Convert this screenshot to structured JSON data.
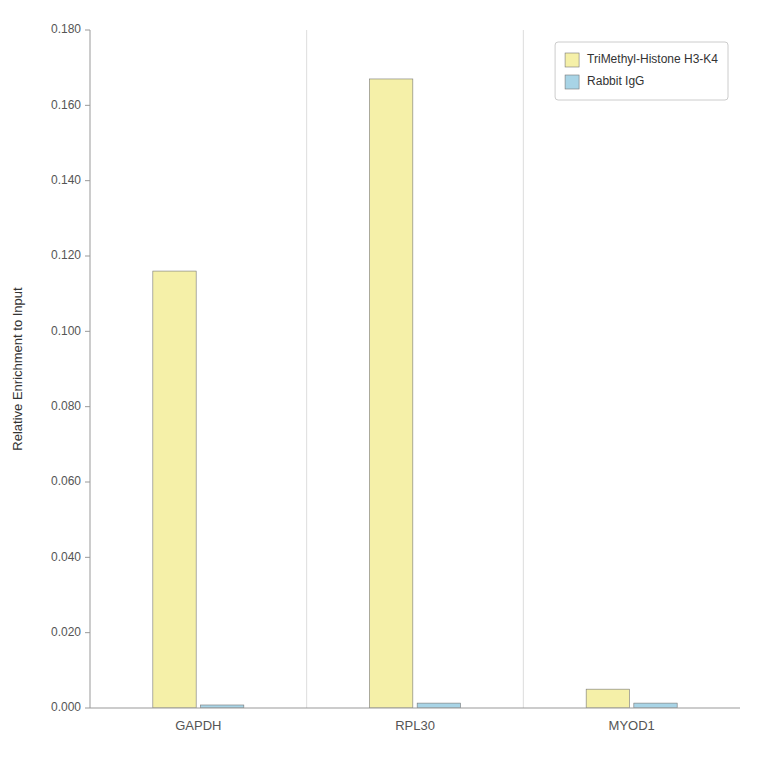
{
  "chart_data": {
    "type": "bar",
    "categories": [
      "GAPDH",
      "RPL30",
      "MYOD1"
    ],
    "series": [
      {
        "name": "TriMethyl-Histone H3-K4",
        "color": "#F5F0A8",
        "values": [
          0.116,
          0.167,
          0.005
        ]
      },
      {
        "name": "Rabbit IgG",
        "color": "#A8D4E6",
        "values": [
          0.0008,
          0.0013,
          0.0013
        ]
      }
    ],
    "ylabel": "Relative Enrichment to Input",
    "ylim": [
      0,
      0.18
    ],
    "yticks": [
      {
        "value": 0.0,
        "label": "0.000"
      },
      {
        "value": 0.02,
        "label": "0.020"
      },
      {
        "value": 0.04,
        "label": "0.040"
      },
      {
        "value": 0.06,
        "label": "0.060"
      },
      {
        "value": 0.08,
        "label": "0.080"
      },
      {
        "value": 0.1,
        "label": "0.100"
      },
      {
        "value": 0.12,
        "label": "0.120"
      },
      {
        "value": 0.14,
        "label": "0.140"
      },
      {
        "value": 0.16,
        "label": "0.160"
      },
      {
        "value": 0.18,
        "label": "0.180"
      }
    ],
    "grid": false,
    "legend": "upper right"
  }
}
